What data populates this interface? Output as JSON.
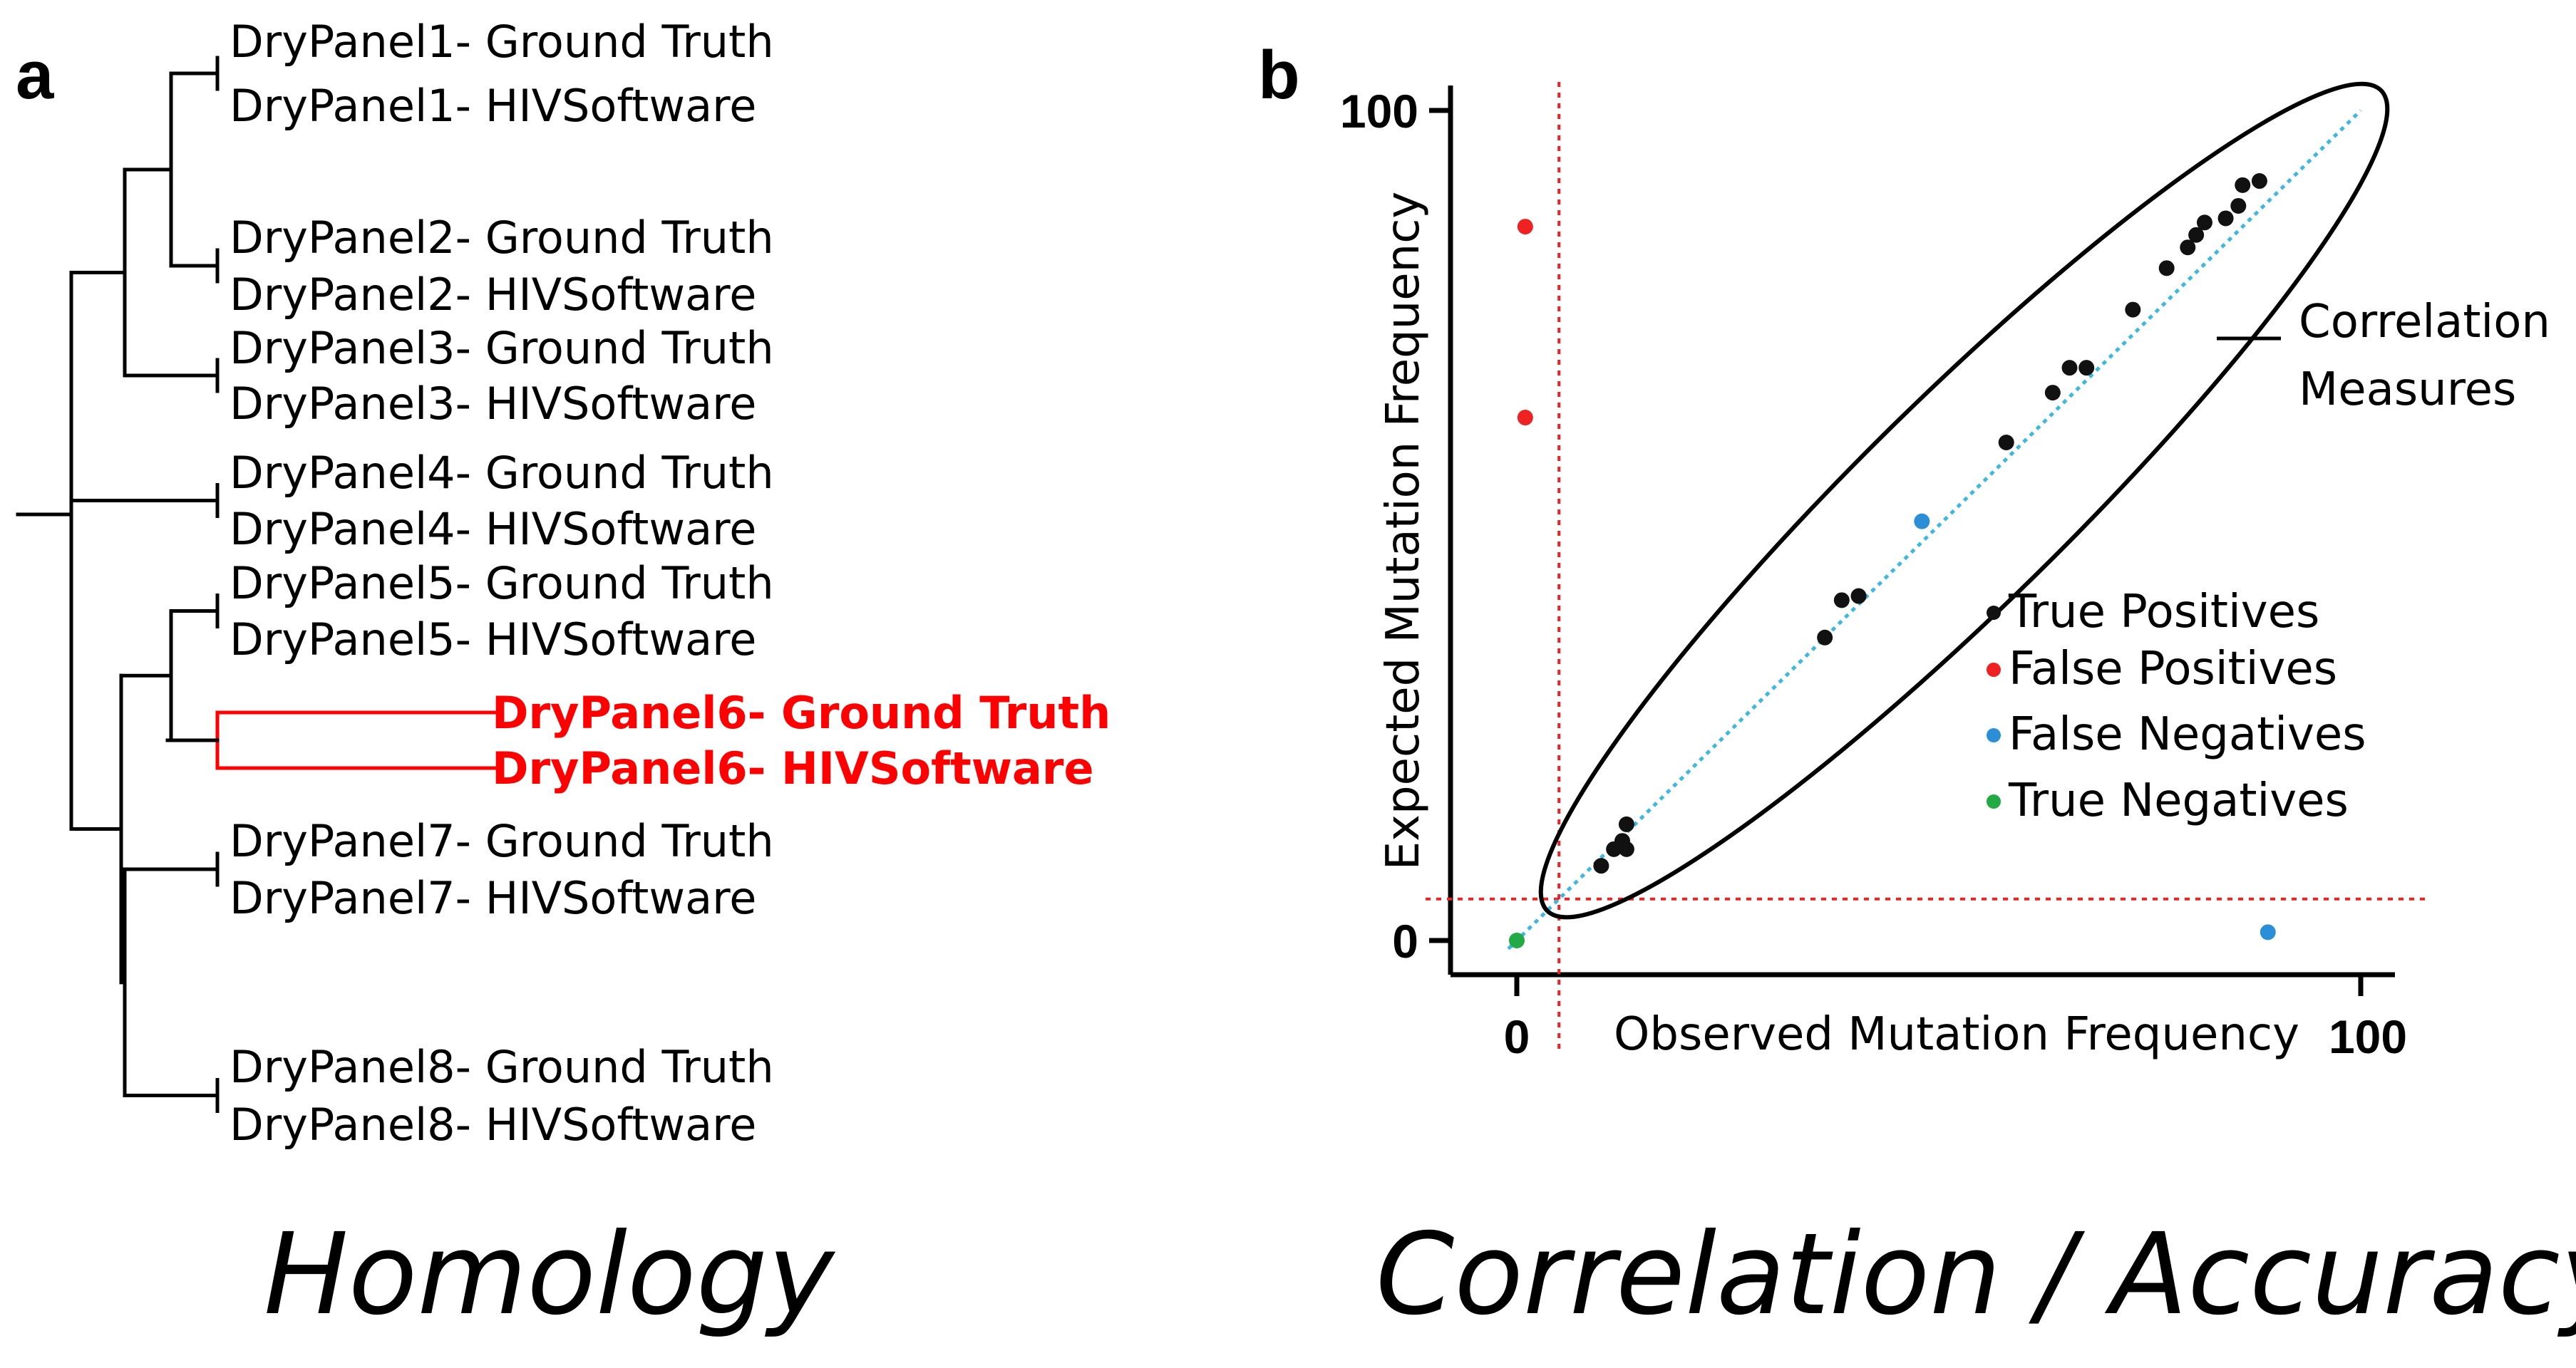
{
  "panel_a": {
    "letter": "a",
    "caption": "Homology",
    "highlight_color": "#ff0000",
    "leaves": [
      {
        "ground": "DryPanel1- Ground Truth",
        "software": "DryPanel1- HIVSoftware",
        "highlight": false
      },
      {
        "ground": "DryPanel2- Ground Truth",
        "software": "DryPanel2- HIVSoftware",
        "highlight": false
      },
      {
        "ground": "DryPanel3- Ground Truth",
        "software": "DryPanel3- HIVSoftware",
        "highlight": false
      },
      {
        "ground": "DryPanel4- Ground Truth",
        "software": "DryPanel4- HIVSoftware",
        "highlight": false
      },
      {
        "ground": "DryPanel5- Ground Truth",
        "software": "DryPanel5- HIVSoftware",
        "highlight": false
      },
      {
        "ground": "DryPanel6- Ground Truth",
        "software": "DryPanel6- HIVSoftware",
        "highlight": true
      },
      {
        "ground": "DryPanel7- Ground Truth",
        "software": "DryPanel7- HIVSoftware",
        "highlight": false
      },
      {
        "ground": "DryPanel8- Ground Truth",
        "software": "DryPanel8- HIVSoftware",
        "highlight": false
      }
    ]
  },
  "panel_b": {
    "letter": "b",
    "caption": "Correlation / Accuracy",
    "xlabel": "Observed Mutation Frequency",
    "ylabel": "Expected Mutation Frequency",
    "x_ticks": [
      "0",
      "100"
    ],
    "y_ticks": [
      "0",
      "100"
    ],
    "xlim": [
      0,
      100
    ],
    "ylim": [
      0,
      100
    ],
    "ellipse_label_line1": "Correlation",
    "ellipse_label_line2": "Measures",
    "threshold": 5,
    "colors": {
      "true_positive": "#111111",
      "false_positive": "#ee2222",
      "false_negative": "#2a8fd6",
      "true_negative": "#22aa44",
      "identity_line": "#3fb8e0",
      "threshold_line": "#ee2222"
    },
    "legend": [
      {
        "label": "True Positives",
        "key": "true_positive"
      },
      {
        "label": "False Positives",
        "key": "false_positive"
      },
      {
        "label": "False Negatives",
        "key": "false_negative"
      },
      {
        "label": "True Negatives",
        "key": "true_negative"
      }
    ]
  },
  "chart_data": {
    "type": "scatter",
    "title": "",
    "xlabel": "Observed Mutation Frequency",
    "ylabel": "Expected Mutation Frequency",
    "xlim": [
      0,
      100
    ],
    "ylim": [
      0,
      100
    ],
    "series": [
      {
        "name": "True Positives",
        "key": "true_positive",
        "points": [
          [
            10,
            9
          ],
          [
            11.5,
            11
          ],
          [
            13,
            11
          ],
          [
            13,
            14
          ],
          [
            12.5,
            12
          ],
          [
            36.5,
            36.5
          ],
          [
            38.5,
            41
          ],
          [
            40.5,
            41.5
          ],
          [
            58,
            60
          ],
          [
            63.5,
            66
          ],
          [
            65.5,
            69
          ],
          [
            67.5,
            69
          ],
          [
            73,
            76
          ],
          [
            77,
            81
          ],
          [
            79.5,
            83.5
          ],
          [
            80.5,
            85
          ],
          [
            81.5,
            86.5
          ],
          [
            84,
            87
          ],
          [
            85.5,
            88.5
          ],
          [
            86,
            91
          ],
          [
            88,
            91.5
          ]
        ]
      },
      {
        "name": "False Positives",
        "key": "false_positive",
        "points": [
          [
            1,
            86
          ],
          [
            1,
            63
          ]
        ]
      },
      {
        "name": "False Negatives",
        "key": "false_negative",
        "points": [
          [
            48,
            50.5
          ],
          [
            89,
            1
          ]
        ]
      },
      {
        "name": "True Negatives",
        "key": "true_negative",
        "points": [
          [
            0,
            0
          ]
        ]
      }
    ]
  }
}
